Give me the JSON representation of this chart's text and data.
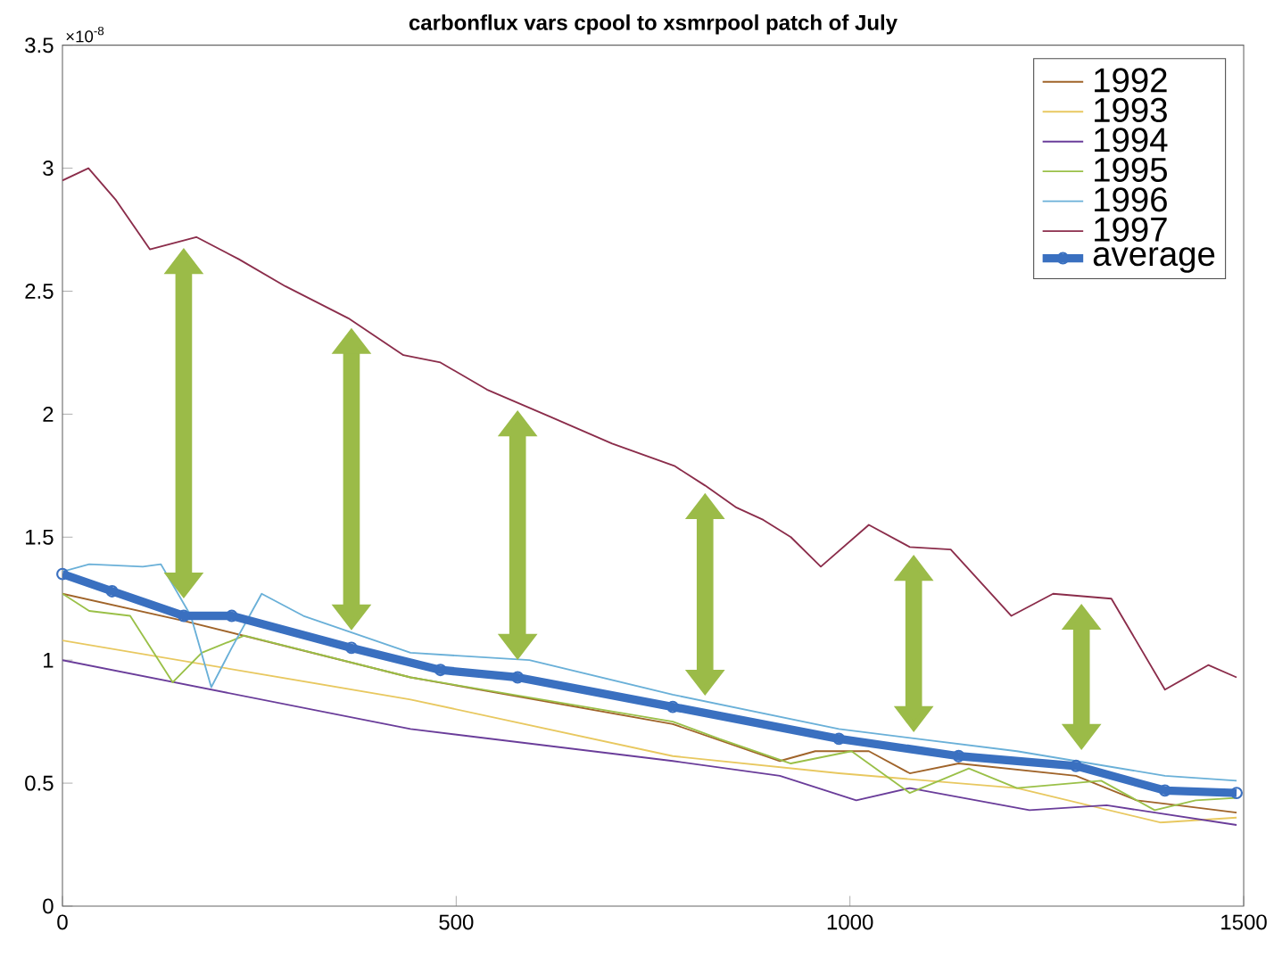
{
  "chart_data": {
    "type": "line",
    "title": "carbonflux vars cpool to xsmrpool patch of July",
    "annotations": [
      "×10$^{-8}$"
    ],
    "xlim": [
      0,
      1500
    ],
    "xticks": [
      0,
      500,
      1000,
      1500
    ],
    "ylim": [
      0,
      3.5
    ],
    "yticks": [
      0,
      0.5,
      1,
      1.5,
      2,
      2.5,
      3,
      3.5
    ],
    "legend": "top right",
    "grid": false,
    "series": [
      {
        "name": "1992",
        "color": "#a0642a",
        "marker": "none",
        "x": [
          0,
          154,
          442,
          775,
          911,
          956,
          1024,
          1076,
          1138,
          1287,
          1364,
          1416,
          1491
        ],
        "values": [
          1.27,
          1.16,
          0.93,
          0.74,
          0.59,
          0.63,
          0.63,
          0.54,
          0.58,
          0.53,
          0.43,
          0.41,
          0.38
        ]
      },
      {
        "name": "1993",
        "color": "#e8c860",
        "marker": "none",
        "x": [
          0,
          442,
          775,
          986,
          1212,
          1394,
          1491
        ],
        "values": [
          1.08,
          0.84,
          0.61,
          0.54,
          0.48,
          0.34,
          0.36
        ]
      },
      {
        "name": "1994",
        "color": "#6a3d9a",
        "marker": "none",
        "x": [
          0,
          442,
          775,
          911,
          1008,
          1076,
          1228,
          1326,
          1491
        ],
        "values": [
          1.0,
          0.72,
          0.59,
          0.53,
          0.43,
          0.48,
          0.39,
          0.41,
          0.33
        ]
      },
      {
        "name": "1995",
        "color": "#9ac048",
        "marker": "none",
        "x": [
          0,
          34,
          86,
          140,
          177,
          231,
          442,
          775,
          834,
          925,
          1002,
          1076,
          1151,
          1212,
          1319,
          1387,
          1439,
          1491
        ],
        "values": [
          1.27,
          1.2,
          1.18,
          0.91,
          1.03,
          1.1,
          0.93,
          0.75,
          0.68,
          0.58,
          0.63,
          0.46,
          0.56,
          0.48,
          0.51,
          0.39,
          0.43,
          0.44
        ]
      },
      {
        "name": "1996",
        "color": "#6ab0d8",
        "marker": "none",
        "x": [
          0,
          34,
          102,
          125,
          163,
          189,
          215,
          253,
          306,
          442,
          593,
          775,
          986,
          1212,
          1400,
          1491
        ],
        "values": [
          1.36,
          1.39,
          1.38,
          1.39,
          1.18,
          0.89,
          1.05,
          1.27,
          1.18,
          1.03,
          1.0,
          0.86,
          0.72,
          0.63,
          0.53,
          0.51
        ]
      },
      {
        "name": "1997",
        "color": "#8b2d4b",
        "marker": "none",
        "x": [
          0,
          33,
          68,
          111,
          170,
          224,
          283,
          363,
          433,
          480,
          539,
          619,
          698,
          777,
          816,
          856,
          890,
          925,
          963,
          1024,
          1076,
          1128,
          1205,
          1258,
          1332,
          1400,
          1455,
          1491
        ],
        "values": [
          2.95,
          3.0,
          2.87,
          2.67,
          2.72,
          2.63,
          2.52,
          2.39,
          2.24,
          2.21,
          2.1,
          1.99,
          1.88,
          1.79,
          1.71,
          1.62,
          1.57,
          1.5,
          1.38,
          1.55,
          1.46,
          1.45,
          1.18,
          1.27,
          1.25,
          0.88,
          0.98,
          0.93
        ]
      },
      {
        "name": "average",
        "color": "#3a70c0",
        "marker": "circle",
        "x": [
          0,
          63,
          154,
          215,
          367,
          480,
          578,
          775,
          986,
          1138,
          1287,
          1400,
          1491
        ],
        "values": [
          1.35,
          1.28,
          1.18,
          1.18,
          1.05,
          0.96,
          0.93,
          0.81,
          0.68,
          0.61,
          0.57,
          0.47,
          0.46
        ]
      }
    ]
  }
}
